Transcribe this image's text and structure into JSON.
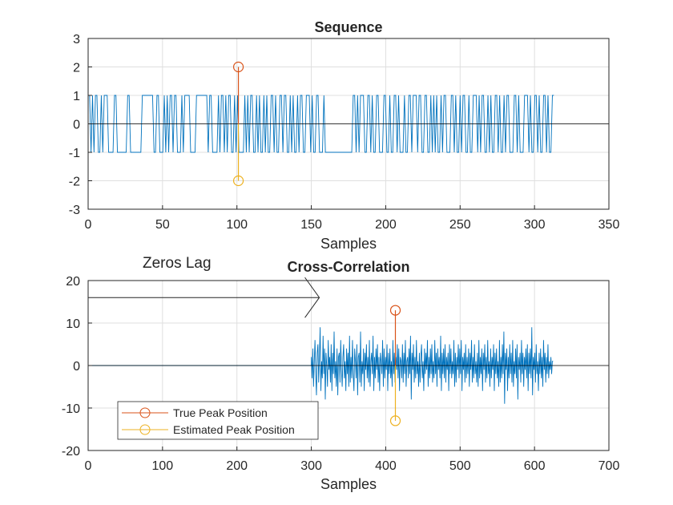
{
  "colors": {
    "signal": "#0072BD",
    "true_peak": "#D95319",
    "estimated_peak": "#EDB120",
    "zero_line": "#000000",
    "grid": "#dfdfdf"
  },
  "chart_data": [
    {
      "type": "line",
      "title": "Sequence",
      "xlabel": "Samples",
      "ylabel": "",
      "xlim": [
        0,
        350
      ],
      "ylim": [
        -3,
        3
      ],
      "xticks": [
        0,
        50,
        100,
        150,
        200,
        250,
        300,
        350
      ],
      "yticks": [
        -3,
        -2,
        -1,
        0,
        1,
        2,
        3
      ],
      "grid": true,
      "zero_line": true,
      "series": [
        {
          "kind": "binary-sequence",
          "x_start": 0,
          "x_end": 313,
          "levels": [
            -1,
            1
          ],
          "values": [
            1,
            1,
            -1,
            1,
            -1,
            1,
            1,
            -1,
            -1,
            1,
            -1,
            1,
            1,
            1,
            -1,
            -1,
            -1,
            -1,
            1,
            1,
            -1,
            -1,
            -1,
            -1,
            -1,
            -1,
            -1,
            1,
            1,
            -1,
            -1,
            -1,
            -1,
            -1,
            -1,
            -1,
            -1,
            1,
            1,
            1,
            1,
            1,
            1,
            1,
            1,
            -1,
            -1,
            1,
            1,
            -1,
            -1,
            -1,
            1,
            -1,
            1,
            -1,
            1,
            1,
            -1,
            1,
            1,
            -1,
            -1,
            -1,
            1,
            -1,
            1,
            1,
            1,
            1,
            -1,
            -1,
            -1,
            -1,
            1,
            1,
            1,
            1,
            1,
            1,
            1,
            1,
            -1,
            1,
            1,
            -1,
            -1,
            -1,
            -1,
            1,
            -1,
            1,
            1,
            -1,
            1,
            -1,
            1,
            1,
            -1,
            -1,
            1,
            -1,
            1,
            -1,
            -1,
            -1,
            -1,
            1,
            -1,
            1,
            -1,
            1,
            1,
            -1,
            -1,
            1,
            -1,
            1,
            -1,
            -1,
            1,
            -1,
            1,
            -1,
            -1,
            1,
            1,
            -1,
            1,
            -1,
            -1,
            1,
            1,
            -1,
            1,
            1,
            -1,
            -1,
            1,
            -1,
            1,
            -1,
            -1,
            1,
            -1,
            1,
            1,
            -1,
            -1,
            1,
            1,
            1,
            -1,
            1,
            -1,
            -1,
            1,
            1,
            -1,
            -1,
            -1,
            1,
            -1,
            -1,
            -1,
            -1,
            -1,
            -1,
            -1,
            -1,
            -1,
            -1,
            -1,
            -1,
            -1,
            -1,
            -1,
            -1,
            -1,
            -1,
            -1,
            1,
            1,
            -1,
            1,
            -1,
            1,
            1,
            1,
            -1,
            -1,
            1,
            1,
            -1,
            1,
            -1,
            -1,
            1,
            1,
            -1,
            -1,
            -1,
            1,
            1,
            -1,
            -1,
            1,
            -1,
            -1,
            1,
            1,
            -1,
            1,
            -1,
            -1,
            -1,
            1,
            -1,
            -1,
            1,
            1,
            -1,
            1,
            1,
            1,
            -1,
            1,
            1,
            -1,
            -1,
            1,
            1,
            -1,
            -1,
            1,
            -1,
            1,
            -1,
            1,
            -1,
            -1,
            1,
            -1,
            1,
            1,
            -1,
            -1,
            -1,
            1,
            1,
            -1,
            1,
            -1,
            -1,
            1,
            -1,
            1,
            1,
            -1,
            -1,
            1,
            -1,
            -1,
            1,
            1,
            1,
            -1,
            1,
            -1,
            1,
            1,
            -1,
            -1,
            1,
            -1,
            1,
            -1,
            -1,
            1,
            1,
            -1,
            1,
            -1,
            -1,
            1,
            -1,
            1,
            1,
            -1,
            -1,
            -1,
            1,
            1,
            -1,
            1,
            -1,
            -1,
            -1,
            1,
            1,
            1,
            -1,
            1,
            -1,
            -1,
            1,
            1,
            -1,
            1,
            -1,
            -1,
            1,
            1,
            -1,
            1,
            -1,
            -1,
            1,
            1
          ]
        }
      ],
      "stems": [
        {
          "series": "true",
          "x": 101,
          "y": 2
        },
        {
          "series": "estimated",
          "x": 101,
          "y": -2
        }
      ]
    },
    {
      "type": "line",
      "title": "Cross-Correlation",
      "xlabel": "Samples",
      "ylabel": "",
      "xlim": [
        0,
        700
      ],
      "ylim": [
        -20,
        20
      ],
      "xticks": [
        0,
        100,
        200,
        300,
        400,
        500,
        600,
        700
      ],
      "yticks": [
        -20,
        -10,
        0,
        10,
        20
      ],
      "grid": true,
      "zero_line": true,
      "annotation": {
        "text": "Zeros Lag",
        "arrow_from_x": 0,
        "arrow_to_x": 300,
        "arrow_y": 16
      },
      "series": [
        {
          "kind": "correlation",
          "zero_until": 300,
          "x_start": 300,
          "x_end": 625,
          "values": [
            2,
            -3,
            4,
            -5,
            1,
            6,
            -2,
            -7,
            3,
            5,
            -4,
            2,
            9,
            -6,
            1,
            -3,
            7,
            -2,
            4,
            -8,
            3,
            0,
            -5,
            6,
            -1,
            2,
            -4,
            5,
            -6,
            3,
            -2,
            8,
            -3,
            1,
            -5,
            4,
            -7,
            2,
            3,
            -4,
            6,
            -1,
            -5,
            2,
            5,
            -3,
            1,
            -6,
            4,
            -2,
            3,
            -5,
            7,
            -4,
            2,
            -3,
            6,
            -2,
            -6,
            4,
            1,
            -3,
            5,
            -7,
            2,
            3,
            -4,
            8,
            -5,
            1,
            -2,
            4,
            -6,
            3,
            -1,
            5,
            -3,
            2,
            -4,
            6,
            -5,
            1,
            3,
            -2,
            7,
            -6,
            2,
            -3,
            4,
            -1,
            5,
            -4,
            2,
            -6,
            3,
            1,
            -2,
            6,
            -5,
            4,
            -3,
            2,
            -1,
            5,
            -6,
            3,
            -2,
            4,
            -3,
            1,
            -5,
            6,
            -2,
            3,
            -4,
            2,
            -1,
            5,
            -3,
            4,
            -6,
            2,
            1,
            -3,
            5,
            -4,
            3,
            -2,
            6,
            -5,
            1,
            2,
            -3,
            4,
            -2,
            7,
            -8,
            3,
            -1,
            5,
            -4,
            2,
            -3,
            6,
            -2,
            1,
            -5,
            3,
            -4,
            2,
            5,
            -3,
            1,
            -6,
            4,
            -2,
            3,
            -1,
            6,
            -5,
            2,
            -3,
            4,
            -2,
            5,
            -4,
            1,
            -3,
            6,
            -2,
            3,
            -5,
            4,
            -1,
            2,
            -3,
            7,
            -6,
            3,
            -2,
            4,
            -3,
            5,
            -4,
            2,
            -1,
            3,
            -6,
            5,
            -2,
            4,
            -3,
            1,
            -2,
            6,
            -5,
            3,
            -4,
            2,
            -1,
            5,
            -3,
            4,
            -2,
            6,
            -6,
            2,
            -1,
            3,
            -4,
            5,
            -3,
            2,
            -2,
            4,
            -5,
            3,
            -1,
            6,
            -4,
            2,
            -3,
            5,
            -2,
            1,
            -4,
            3,
            -5,
            6,
            -3,
            2,
            -2,
            4,
            -6,
            3,
            -1,
            5,
            -4,
            2,
            -3,
            6,
            -2,
            1,
            -5,
            4,
            -3,
            2,
            -1,
            5,
            -6,
            3,
            -2,
            4,
            -3,
            1,
            -5,
            6,
            -4,
            2,
            -3,
            5,
            -2,
            8,
            -9,
            3,
            -1,
            4,
            -6,
            2,
            -3,
            5,
            -2,
            3,
            -4,
            6,
            -5,
            1,
            -2,
            4,
            -3,
            5,
            -8,
            2,
            -1,
            3,
            -4,
            6,
            -2,
            3,
            -5,
            2,
            -1,
            4,
            -3,
            5,
            -6,
            3,
            -2,
            4,
            -3,
            9,
            -7,
            2,
            -1,
            3,
            -4,
            5,
            -2,
            1,
            -6,
            3,
            -2,
            4,
            -3,
            2,
            -5,
            6,
            -1,
            3,
            -4,
            2,
            -2,
            5,
            -3,
            1,
            -1,
            2,
            -2,
            1,
            1
          ]
        }
      ],
      "stems": [
        {
          "series": "true",
          "x": 413,
          "y": 13
        },
        {
          "series": "estimated",
          "x": 413,
          "y": -13
        }
      ],
      "legend": {
        "position": "bottom-left",
        "entries": [
          {
            "label": "True Peak Position",
            "series": "true"
          },
          {
            "label": "Estimated Peak Position",
            "series": "estimated"
          }
        ]
      }
    }
  ]
}
